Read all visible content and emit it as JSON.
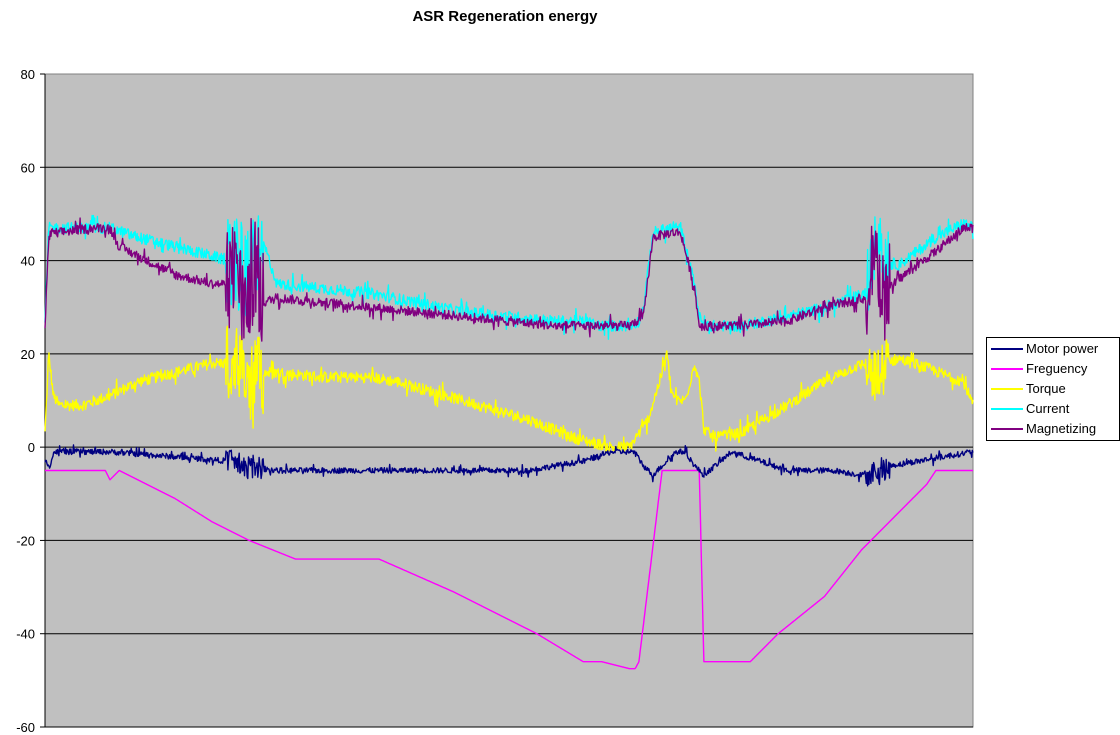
{
  "chart_data": {
    "type": "line",
    "title": "ASR Regeneration energy",
    "xlabel": "",
    "ylabel": "",
    "ylim": [
      -60,
      80
    ],
    "yticks": [
      80,
      60,
      40,
      20,
      0,
      -20,
      -40,
      -60
    ],
    "xlim": [
      0,
      100
    ],
    "grid": true,
    "legend_position": "right",
    "plot_background": "#C0C0C0",
    "series": [
      {
        "name": "Motor power",
        "color": "#000080",
        "noise": 0.6,
        "x": [
          0,
          0.5,
          1,
          7,
          20,
          21,
          25,
          30,
          38,
          45,
          52,
          58,
          61,
          62.5,
          63.5,
          64.5,
          65.5,
          68,
          69,
          70,
          71,
          74,
          80,
          85,
          88,
          90,
          91,
          94,
          97,
          100
        ],
        "y": [
          -3,
          -4,
          -1,
          -1,
          -3,
          -4,
          -5,
          -5,
          -5,
          -5,
          -5,
          -3,
          -1,
          -1,
          -1,
          -4,
          -6,
          -1,
          -1,
          -4,
          -6,
          -1,
          -5,
          -5,
          -6,
          -5,
          -4,
          -3,
          -2,
          -1
        ]
      },
      {
        "name": "Freguency",
        "color": "#FF00FF",
        "noise": 0,
        "x": [
          0,
          0.3,
          1,
          6.5,
          7,
          8,
          10,
          14,
          18,
          22,
          27,
          30,
          36,
          44,
          53,
          58,
          60,
          63,
          63.6,
          64,
          66.5,
          67,
          70,
          70.5,
          71,
          76,
          79,
          84,
          88,
          93,
          95,
          96,
          100
        ],
        "y": [
          -5,
          -5,
          -5,
          -5,
          -7,
          -5,
          -7,
          -11,
          -16,
          -20,
          -24,
          -24,
          -24,
          -31,
          -40,
          -46,
          -46,
          -47.5,
          -47.5,
          -46,
          -5,
          -5,
          -5,
          -5,
          -46,
          -46,
          -40,
          -32,
          -22,
          -12,
          -8,
          -5,
          -5
        ]
      },
      {
        "name": "Torque",
        "color": "#FFFF00",
        "noise": 1.2,
        "x": [
          0,
          0.4,
          0.9,
          1.5,
          4,
          7,
          10,
          14,
          18,
          19.5,
          20.5,
          21,
          22,
          23,
          25,
          30,
          35,
          38,
          45,
          52,
          57,
          59,
          61,
          63,
          65,
          66.5,
          67,
          67.5,
          68,
          69,
          70,
          70.5,
          71,
          72,
          75,
          80,
          84,
          87,
          88.5,
          89.5,
          90.5,
          92,
          95,
          99,
          100
        ],
        "y": [
          3,
          20,
          11,
          9,
          9,
          11,
          14,
          16,
          18,
          18,
          14,
          16,
          11,
          16,
          16,
          15,
          15,
          14,
          10,
          6,
          2,
          1,
          0,
          0,
          6,
          16,
          20,
          12,
          10,
          10,
          18,
          14,
          4,
          2,
          3,
          9,
          14,
          17,
          18,
          14,
          18,
          19,
          17,
          14,
          9
        ]
      },
      {
        "name": "Current",
        "color": "#00FFFF",
        "noise": 1.2,
        "x": [
          0,
          0.4,
          0.8,
          1.5,
          7,
          10,
          14,
          18,
          19.5,
          20.5,
          21.5,
          22.5,
          23.5,
          25,
          30,
          35,
          40,
          45,
          50,
          55,
          58,
          60,
          62,
          63,
          64,
          64.5,
          65.5,
          67.5,
          68.5,
          70,
          70.5,
          71,
          72,
          75,
          80,
          84,
          88.5,
          89.5,
          90.5,
          92,
          96,
          99,
          100
        ],
        "y": [
          27,
          47,
          47,
          47,
          47,
          45,
          43,
          41,
          40,
          41,
          36,
          40,
          44,
          35,
          34,
          33,
          31,
          29,
          28,
          27,
          27,
          26,
          26,
          26,
          27,
          30,
          46,
          47,
          47,
          35,
          28,
          26,
          26,
          26,
          28,
          30,
          33,
          44,
          40,
          39,
          45,
          48,
          47
        ]
      },
      {
        "name": "Magnetizing",
        "color": "#800080",
        "noise": 1.0,
        "x": [
          0,
          0.4,
          0.8,
          1.5,
          5,
          7,
          8,
          10,
          14,
          18,
          19.5,
          20.5,
          21.5,
          22.5,
          23.5,
          25,
          30,
          35,
          40,
          45,
          50,
          55,
          58,
          60,
          63,
          64.5,
          65.5,
          67.5,
          68.5,
          70,
          70.5,
          71,
          72,
          75,
          80,
          84,
          88.5,
          89.5,
          90.5,
          92,
          96,
          99,
          100
        ],
        "y": [
          26,
          45,
          46,
          46,
          47,
          47,
          43,
          41,
          37,
          35,
          35,
          40,
          28,
          40,
          31,
          32,
          31,
          30,
          29,
          28,
          27,
          26,
          26,
          26,
          26,
          28,
          45,
          46,
          46,
          34,
          26,
          26,
          26,
          26,
          27,
          30,
          32,
          40,
          33,
          36,
          42,
          47,
          47
        ]
      }
    ],
    "bursts": [
      {
        "series": "Motor power",
        "x0": 19.5,
        "x1": 23.5,
        "amp": 2.5
      },
      {
        "series": "Motor power",
        "x0": 88.5,
        "x1": 91,
        "amp": 2.5
      },
      {
        "series": "Torque",
        "x0": 19.5,
        "x1": 23.5,
        "amp": 9
      },
      {
        "series": "Torque",
        "x0": 88.5,
        "x1": 91,
        "amp": 6
      },
      {
        "series": "Current",
        "x0": 19.5,
        "x1": 23.5,
        "amp": 10
      },
      {
        "series": "Current",
        "x0": 88.5,
        "x1": 91,
        "amp": 7
      },
      {
        "series": "Magnetizing",
        "x0": 19.5,
        "x1": 23.5,
        "amp": 12
      },
      {
        "series": "Magnetizing",
        "x0": 88.5,
        "x1": 91,
        "amp": 10
      }
    ]
  }
}
